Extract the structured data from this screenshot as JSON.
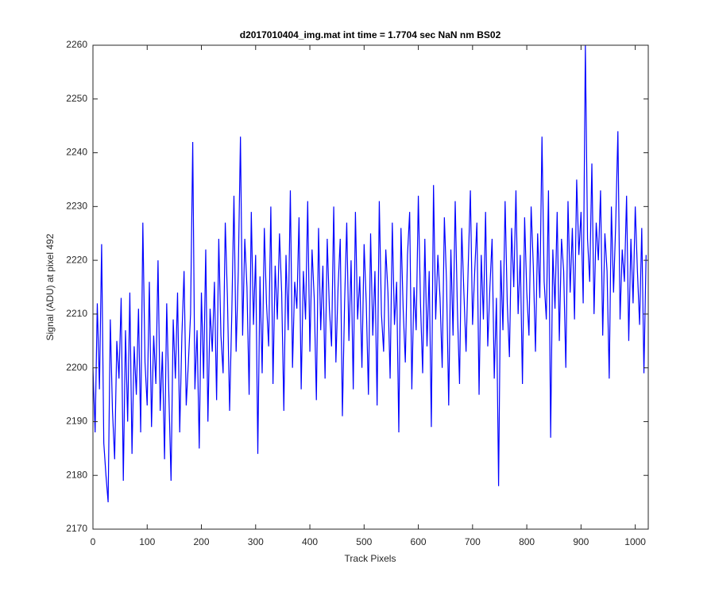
{
  "chart_data": {
    "type": "line",
    "title": "d2017010404_img.mat int time = 1.7704 sec  NaN nm BS02",
    "x_label": "Track Pixels",
    "y_label": "Signal (ADU) at pixel 492",
    "xlim": [
      0,
      1024
    ],
    "xticks": [
      0,
      100,
      200,
      300,
      400,
      500,
      600,
      700,
      800,
      900,
      1000
    ],
    "ylim": [
      2170,
      2260
    ],
    "yticks": [
      2170,
      2180,
      2190,
      2200,
      2210,
      2220,
      2230,
      2240,
      2250,
      2260
    ],
    "x": [
      0,
      4,
      8,
      12,
      16,
      20,
      24,
      28,
      32,
      36,
      40,
      44,
      48,
      52,
      56,
      60,
      64,
      68,
      72,
      76,
      80,
      84,
      88,
      92,
      96,
      100,
      104,
      108,
      112,
      116,
      120,
      124,
      128,
      132,
      136,
      140,
      144,
      148,
      152,
      156,
      160,
      164,
      168,
      172,
      176,
      180,
      184,
      188,
      192,
      196,
      200,
      204,
      208,
      212,
      216,
      220,
      224,
      228,
      232,
      236,
      240,
      244,
      248,
      252,
      256,
      260,
      264,
      268,
      272,
      276,
      280,
      284,
      288,
      292,
      296,
      300,
      304,
      308,
      312,
      316,
      320,
      324,
      328,
      332,
      336,
      340,
      344,
      348,
      352,
      356,
      360,
      364,
      368,
      372,
      376,
      380,
      384,
      388,
      392,
      396,
      400,
      404,
      408,
      412,
      416,
      420,
      424,
      428,
      432,
      436,
      440,
      444,
      448,
      452,
      456,
      460,
      464,
      468,
      472,
      476,
      480,
      484,
      488,
      492,
      496,
      500,
      504,
      508,
      512,
      516,
      520,
      524,
      528,
      532,
      536,
      540,
      544,
      548,
      552,
      556,
      560,
      564,
      568,
      572,
      576,
      580,
      584,
      588,
      592,
      596,
      600,
      604,
      608,
      612,
      616,
      620,
      624,
      628,
      632,
      636,
      640,
      644,
      648,
      652,
      656,
      660,
      664,
      668,
      672,
      676,
      680,
      684,
      688,
      692,
      696,
      700,
      704,
      708,
      712,
      716,
      720,
      724,
      728,
      732,
      736,
      740,
      744,
      748,
      752,
      756,
      760,
      764,
      768,
      772,
      776,
      780,
      784,
      788,
      792,
      796,
      800,
      804,
      808,
      812,
      816,
      820,
      824,
      828,
      832,
      836,
      840,
      844,
      848,
      852,
      856,
      860,
      864,
      868,
      872,
      876,
      880,
      884,
      888,
      892,
      896,
      900,
      904,
      908,
      912,
      916,
      920,
      924,
      928,
      932,
      936,
      940,
      944,
      948,
      952,
      956,
      960,
      964,
      968,
      972,
      976,
      980,
      984,
      988,
      992,
      996,
      1000,
      1004,
      1008,
      1012,
      1016,
      1020
    ],
    "series": [
      {
        "color": "#0000ff",
        "values": [
          2200,
          2188,
          2212,
          2196,
          2223,
          2186,
          2180,
          2175,
          2209,
          2192,
          2183,
          2205,
          2198,
          2213,
          2179,
          2207,
          2190,
          2214,
          2184,
          2204,
          2195,
          2211,
          2188,
          2227,
          2201,
          2193,
          2216,
          2189,
          2206,
          2197,
          2220,
          2192,
          2203,
          2183,
          2212,
          2195,
          2179,
          2209,
          2198,
          2214,
          2188,
          2206,
          2218,
          2193,
          2201,
          2210,
          2242,
          2196,
          2207,
          2185,
          2214,
          2198,
          2222,
          2190,
          2211,
          2203,
          2216,
          2194,
          2224,
          2206,
          2199,
          2227,
          2213,
          2192,
          2210,
          2232,
          2203,
          2218,
          2243,
          2206,
          2224,
          2215,
          2195,
          2229,
          2208,
          2221,
          2184,
          2217,
          2199,
          2226,
          2212,
          2204,
          2230,
          2197,
          2219,
          2209,
          2225,
          2214,
          2192,
          2221,
          2207,
          2233,
          2200,
          2216,
          2211,
          2228,
          2196,
          2218,
          2209,
          2231,
          2203,
          2222,
          2213,
          2194,
          2226,
          2207,
          2219,
          2198,
          2224,
          2211,
          2204,
          2230,
          2201,
          2215,
          2224,
          2191,
          2212,
          2227,
          2205,
          2220,
          2196,
          2229,
          2209,
          2217,
          2200,
          2223,
          2212,
          2195,
          2225,
          2206,
          2218,
          2193,
          2231,
          2210,
          2203,
          2222,
          2214,
          2198,
          2227,
          2208,
          2216,
          2188,
          2226,
          2211,
          2201,
          2221,
          2229,
          2196,
          2215,
          2207,
          2232,
          2212,
          2199,
          2224,
          2204,
          2218,
          2189,
          2234,
          2209,
          2221,
          2213,
          2200,
          2228,
          2216,
          2193,
          2222,
          2206,
          2231,
          2211,
          2197,
          2226,
          2214,
          2203,
          2219,
          2233,
          2208,
          2218,
          2227,
          2195,
          2221,
          2209,
          2229,
          2204,
          2215,
          2224,
          2198,
          2213,
          2178,
          2220,
          2207,
          2231,
          2212,
          2202,
          2226,
          2215,
          2233,
          2210,
          2221,
          2197,
          2228,
          2214,
          2206,
          2230,
          2219,
          2203,
          2225,
          2213,
          2243,
          2216,
          2209,
          2233,
          2187,
          2222,
          2211,
          2229,
          2205,
          2224,
          2218,
          2200,
          2231,
          2214,
          2226,
          2209,
          2235,
          2221,
          2229,
          2212,
          2260,
          2224,
          2216,
          2238,
          2210,
          2227,
          2220,
          2233,
          2206,
          2225,
          2218,
          2198,
          2230,
          2214,
          2227,
          2244,
          2209,
          2222,
          2216,
          2232,
          2205,
          2224,
          2212,
          2230,
          2218,
          2208,
          2226,
          2199,
          2221
        ]
      }
    ]
  }
}
